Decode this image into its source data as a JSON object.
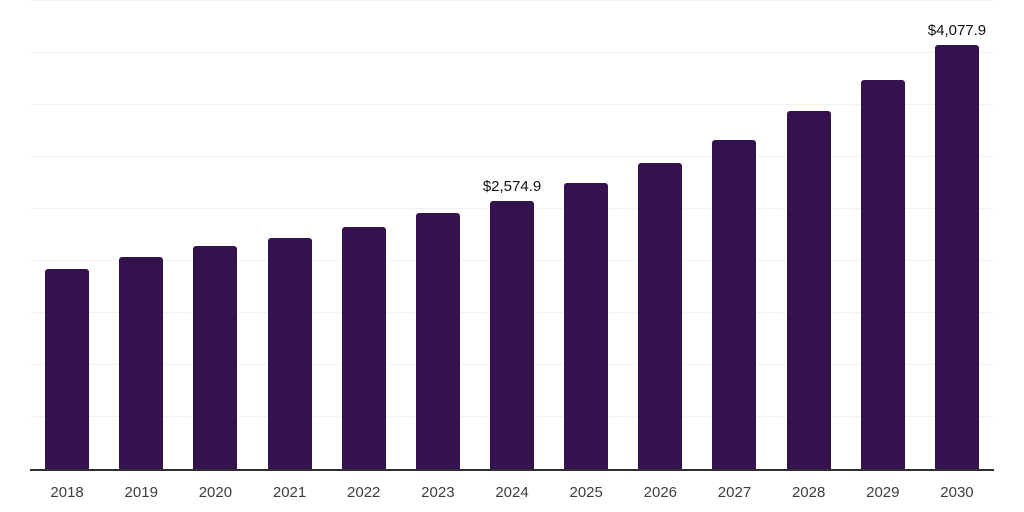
{
  "chart_data": {
    "type": "bar",
    "title": "",
    "xlabel": "",
    "ylabel": "",
    "categories": [
      "2018",
      "2019",
      "2020",
      "2021",
      "2022",
      "2023",
      "2024",
      "2025",
      "2026",
      "2027",
      "2028",
      "2029",
      "2030"
    ],
    "values": [
      1920,
      2040,
      2140,
      2220,
      2330,
      2460,
      2574.9,
      2750,
      2940,
      3160,
      3440,
      3740,
      4077.9
    ],
    "data_labels": [
      "",
      "",
      "",
      "",
      "",
      "",
      "$2,574.9",
      "",
      "",
      "",
      "",
      "",
      "$4,077.9"
    ],
    "ylim": [
      0,
      4500
    ],
    "gridline_step": 500,
    "grid": "horizontal-only",
    "legend_position": "none",
    "y_axis_tick_labels_visible": false,
    "colors": {
      "bar_fill": "#34124E",
      "gridline": "#f2f2f2",
      "axis_line": "#2e2e2e",
      "tick_label": "#3d3d3d",
      "data_label": "#111111",
      "background": "#ffffff"
    }
  }
}
